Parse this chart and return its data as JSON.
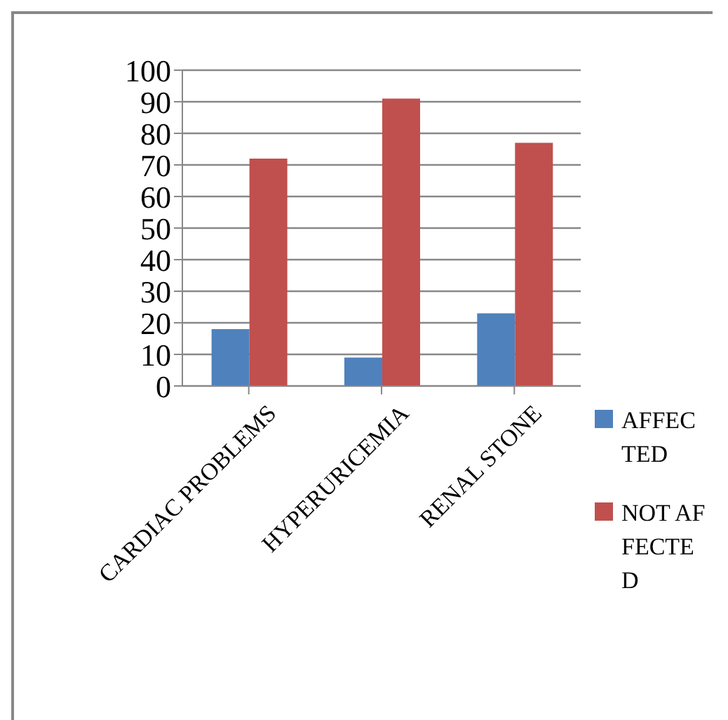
{
  "chart_data": {
    "type": "bar",
    "categories": [
      "CARDIAC PROBLEMS",
      "HYPERURICEMIA",
      "RENAL STONE"
    ],
    "series": [
      {
        "name": "AFFECTED",
        "color": "#4f81bd",
        "values": [
          18,
          9,
          23
        ]
      },
      {
        "name": "NOT AFFECTED",
        "color": "#c0504d",
        "values": [
          72,
          91,
          77
        ]
      }
    ],
    "ylim": [
      0,
      100
    ],
    "yticks": [
      0,
      10,
      20,
      30,
      40,
      50,
      60,
      70,
      80,
      90,
      100
    ],
    "grid": "y",
    "legend": "right"
  }
}
